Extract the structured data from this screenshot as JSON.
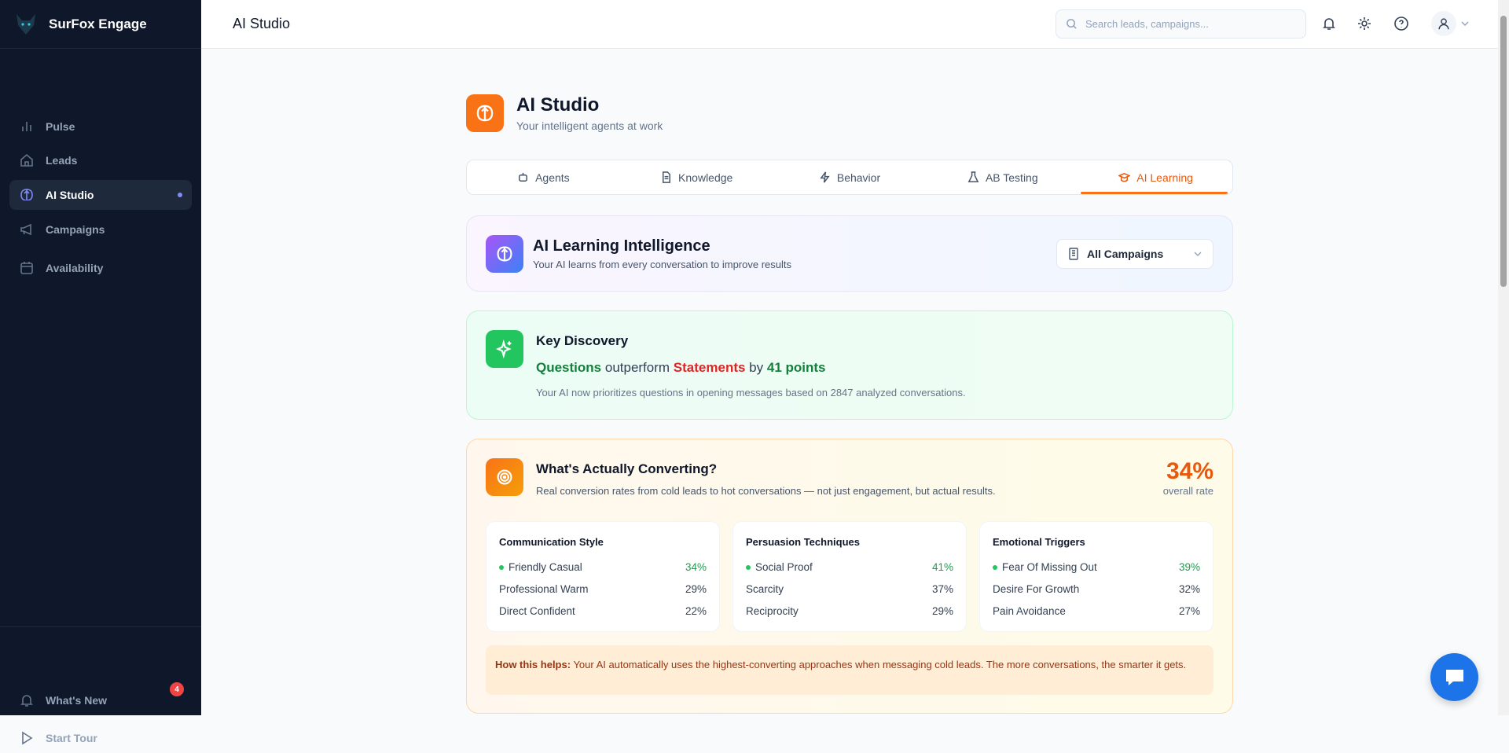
{
  "app": {
    "name": "SurFox Engage"
  },
  "sidebar": {
    "items": [
      {
        "label": "Pulse",
        "icon": "bar-chart-icon"
      },
      {
        "label": "Leads",
        "icon": "home-icon"
      },
      {
        "label": "AI Studio",
        "icon": "brain-icon",
        "active": true
      },
      {
        "label": "Campaigns",
        "icon": "megaphone-icon"
      },
      {
        "label": "Availability",
        "icon": "calendar-icon"
      }
    ],
    "bottom": [
      {
        "label": "What's New",
        "icon": "bell-icon",
        "badge": "4"
      },
      {
        "label": "Start Tour",
        "icon": "play-icon"
      }
    ]
  },
  "header": {
    "title": "AI Studio",
    "search_placeholder": "Search leads, campaigns..."
  },
  "page": {
    "title": "AI Studio",
    "subtitle": "Your intelligent agents at work"
  },
  "tabs": [
    {
      "label": "Agents",
      "icon": "robot-icon"
    },
    {
      "label": "Knowledge",
      "icon": "document-icon"
    },
    {
      "label": "Behavior",
      "icon": "lightning-icon"
    },
    {
      "label": "AB Testing",
      "icon": "flask-icon"
    },
    {
      "label": "AI Learning",
      "icon": "graduation-cap-icon",
      "active": true
    }
  ],
  "learning": {
    "title": "AI Learning Intelligence",
    "subtitle": "Your AI learns from every conversation to improve results",
    "filter": "All Campaigns"
  },
  "discovery": {
    "title": "Key Discovery",
    "winner": "Questions",
    "middle": "outperform",
    "loser": "Statements",
    "by": "by",
    "delta": "41 points",
    "note": "Your AI now prioritizes questions in opening messages based on 2847 analyzed conversations."
  },
  "converting": {
    "title": "What's Actually Converting?",
    "subtitle": "Real conversion rates from cold leads to hot conversations — not just engagement, but actual results.",
    "overall_value": "34%",
    "overall_label": "overall rate",
    "groups": [
      {
        "title": "Communication Style",
        "rows": [
          {
            "label": "Friendly Casual",
            "value": "34%"
          },
          {
            "label": "Professional Warm",
            "value": "29%"
          },
          {
            "label": "Direct Confident",
            "value": "22%"
          }
        ]
      },
      {
        "title": "Persuasion Techniques",
        "rows": [
          {
            "label": "Social Proof",
            "value": "41%"
          },
          {
            "label": "Scarcity",
            "value": "37%"
          },
          {
            "label": "Reciprocity",
            "value": "29%"
          }
        ]
      },
      {
        "title": "Emotional Triggers",
        "rows": [
          {
            "label": "Fear Of Missing Out",
            "value": "39%"
          },
          {
            "label": "Desire For Growth",
            "value": "32%"
          },
          {
            "label": "Pain Avoidance",
            "value": "27%"
          }
        ]
      }
    ],
    "help_label": "How this helps:",
    "help_text": "Your AI automatically uses the highest-converting approaches when messaging cold leads. The more conversations, the smarter it gets."
  },
  "colors": {
    "sidebar": "#0f172a",
    "accent": "#f97316",
    "positive": "#16a34a",
    "negative": "#dc2626",
    "chat": "#1d74e8"
  }
}
